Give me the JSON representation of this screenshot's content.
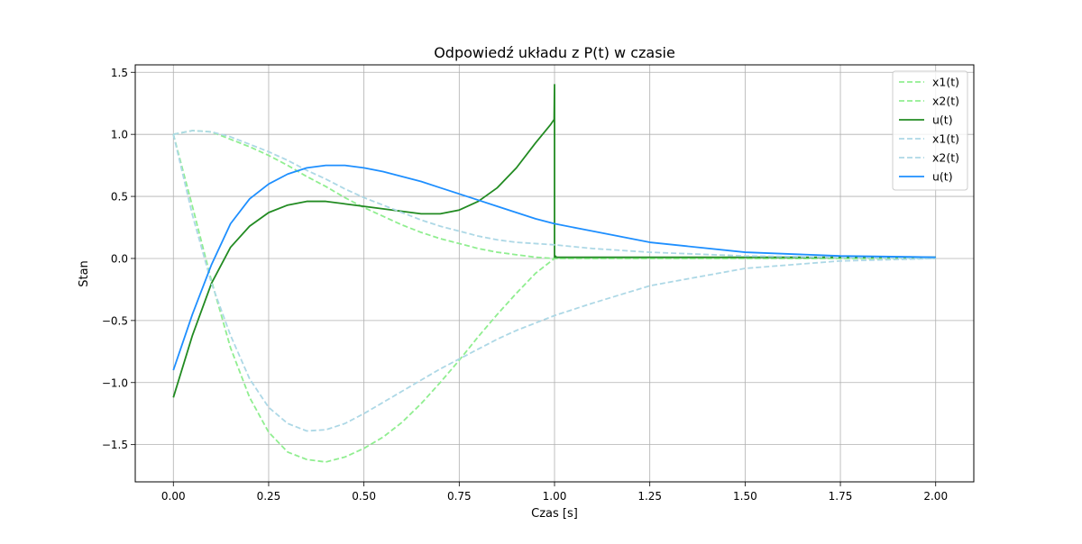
{
  "chart_data": {
    "type": "line",
    "title": "Odpowiedź układu z P(t) w czasie",
    "xlabel": "Czas [s]",
    "ylabel": "Stan",
    "xlim": [
      -0.1,
      2.1
    ],
    "ylim": [
      -1.8,
      1.56
    ],
    "xticks": [
      0.0,
      0.25,
      0.5,
      0.75,
      1.0,
      1.25,
      1.5,
      1.75,
      2.0
    ],
    "xtick_labels": [
      "0.00",
      "0.25",
      "0.50",
      "0.75",
      "1.00",
      "1.25",
      "1.50",
      "1.75",
      "2.00"
    ],
    "yticks": [
      -1.5,
      -1.0,
      -0.5,
      0.0,
      0.5,
      1.0,
      1.5
    ],
    "ytick_labels": [
      "−1.5",
      "−1.0",
      "−0.5",
      "0.0",
      "0.5",
      "1.0",
      "1.5"
    ],
    "grid": true,
    "legend_position": "top-right",
    "series": [
      {
        "name": "x1(t)",
        "color": "#90ee90",
        "style": "dashed",
        "x": [
          0,
          0.05,
          0.1,
          0.15,
          0.2,
          0.25,
          0.3,
          0.35,
          0.4,
          0.45,
          0.5,
          0.55,
          0.6,
          0.65,
          0.7,
          0.75,
          0.8,
          0.85,
          0.9,
          0.95,
          1.0,
          1.1,
          1.25,
          1.5,
          1.75,
          2.0
        ],
        "y": [
          1.0,
          1.03,
          1.02,
          0.96,
          0.9,
          0.83,
          0.75,
          0.66,
          0.58,
          0.49,
          0.41,
          0.34,
          0.27,
          0.21,
          0.16,
          0.12,
          0.08,
          0.05,
          0.03,
          0.01,
          0.0,
          0.0,
          0.0,
          0.0,
          0.0,
          0.0
        ]
      },
      {
        "name": "x2(t)",
        "color": "#90ee90",
        "style": "dashed",
        "x": [
          0,
          0.05,
          0.1,
          0.15,
          0.2,
          0.25,
          0.3,
          0.35,
          0.4,
          0.45,
          0.5,
          0.55,
          0.6,
          0.65,
          0.7,
          0.75,
          0.8,
          0.85,
          0.9,
          0.95,
          1.0,
          1.1,
          1.25,
          1.5,
          1.75,
          2.0
        ],
        "y": [
          1.0,
          0.42,
          -0.18,
          -0.72,
          -1.12,
          -1.4,
          -1.56,
          -1.62,
          -1.64,
          -1.6,
          -1.53,
          -1.44,
          -1.32,
          -1.17,
          -1.0,
          -0.82,
          -0.63,
          -0.45,
          -0.28,
          -0.12,
          0.0,
          0.0,
          0.0,
          0.0,
          0.0,
          0.0
        ]
      },
      {
        "name": "u(t)",
        "color": "#228b22",
        "style": "solid",
        "x": [
          0,
          0.05,
          0.1,
          0.15,
          0.2,
          0.25,
          0.3,
          0.35,
          0.4,
          0.45,
          0.5,
          0.55,
          0.6,
          0.65,
          0.7,
          0.75,
          0.8,
          0.85,
          0.9,
          0.95,
          0.99,
          0.999,
          1.0,
          1.0,
          1.002,
          1.002,
          1.005,
          1.25,
          1.5,
          1.75,
          2.0
        ],
        "y": [
          -1.12,
          -0.62,
          -0.2,
          0.09,
          0.26,
          0.37,
          0.43,
          0.46,
          0.46,
          0.44,
          0.42,
          0.4,
          0.38,
          0.36,
          0.36,
          0.39,
          0.46,
          0.57,
          0.73,
          0.93,
          1.08,
          1.12,
          1.4,
          0.01,
          0.01,
          0.02,
          0.01,
          0.01,
          0.01,
          0.01,
          0.01
        ]
      },
      {
        "name": "x1(t)",
        "color": "#add8e6",
        "style": "dashed",
        "x": [
          0,
          0.05,
          0.1,
          0.15,
          0.2,
          0.25,
          0.3,
          0.35,
          0.4,
          0.45,
          0.5,
          0.55,
          0.6,
          0.65,
          0.7,
          0.75,
          0.8,
          0.85,
          0.9,
          0.95,
          1.0,
          1.1,
          1.25,
          1.5,
          1.75,
          2.0
        ],
        "y": [
          1.0,
          1.03,
          1.02,
          0.98,
          0.92,
          0.86,
          0.79,
          0.71,
          0.64,
          0.56,
          0.49,
          0.43,
          0.37,
          0.31,
          0.26,
          0.22,
          0.18,
          0.15,
          0.13,
          0.12,
          0.11,
          0.08,
          0.05,
          0.02,
          0.01,
          0.0
        ]
      },
      {
        "name": "x2(t)",
        "color": "#add8e6",
        "style": "dashed",
        "x": [
          0,
          0.05,
          0.1,
          0.15,
          0.2,
          0.25,
          0.3,
          0.35,
          0.4,
          0.45,
          0.5,
          0.55,
          0.6,
          0.65,
          0.7,
          0.75,
          0.8,
          0.85,
          0.9,
          0.95,
          1.0,
          1.1,
          1.25,
          1.5,
          1.75,
          2.0
        ],
        "y": [
          1.0,
          0.35,
          -0.2,
          -0.62,
          -0.97,
          -1.2,
          -1.33,
          -1.39,
          -1.38,
          -1.33,
          -1.25,
          -1.16,
          -1.07,
          -0.98,
          -0.89,
          -0.81,
          -0.73,
          -0.65,
          -0.58,
          -0.52,
          -0.46,
          -0.36,
          -0.22,
          -0.08,
          -0.02,
          0.0
        ]
      },
      {
        "name": "u(t)",
        "color": "#1e8fff",
        "style": "solid",
        "x": [
          0,
          0.05,
          0.1,
          0.15,
          0.2,
          0.25,
          0.3,
          0.35,
          0.4,
          0.45,
          0.5,
          0.55,
          0.6,
          0.65,
          0.7,
          0.75,
          0.8,
          0.85,
          0.9,
          0.95,
          1.0,
          1.1,
          1.25,
          1.5,
          1.75,
          2.0
        ],
        "y": [
          -0.9,
          -0.45,
          -0.05,
          0.28,
          0.48,
          0.6,
          0.68,
          0.73,
          0.75,
          0.75,
          0.73,
          0.7,
          0.66,
          0.62,
          0.57,
          0.52,
          0.47,
          0.42,
          0.37,
          0.32,
          0.28,
          0.22,
          0.13,
          0.05,
          0.02,
          0.01
        ]
      }
    ]
  }
}
